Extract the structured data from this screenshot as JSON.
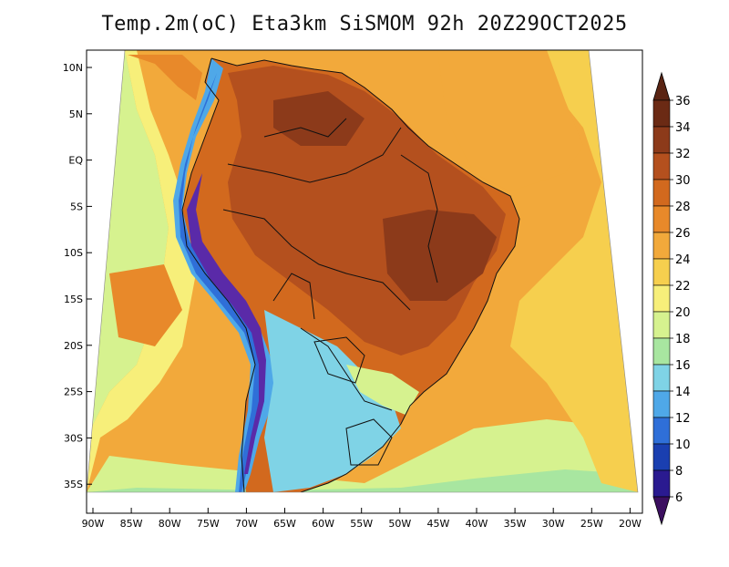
{
  "title": "Temp.2m(oC) Eta3km SiSMOM 92h 20Z29OCT2025",
  "lat_labels": [
    "10N",
    "5N",
    "EQ",
    "5S",
    "10S",
    "15S",
    "20S",
    "25S",
    "30S",
    "35S"
  ],
  "lon_labels": [
    "90W",
    "85W",
    "80W",
    "75W",
    "70W",
    "65W",
    "60W",
    "55W",
    "50W",
    "45W",
    "40W",
    "35W",
    "30W",
    "25W",
    "20W"
  ],
  "colorbar": {
    "labels": [
      "36",
      "34",
      "32",
      "30",
      "28",
      "26",
      "24",
      "22",
      "20",
      "18",
      "16",
      "14",
      "12",
      "10",
      "8",
      "6"
    ],
    "colors": [
      "#6b2a14",
      "#8c3a1a",
      "#b4501e",
      "#d2691e",
      "#e8892a",
      "#f2a93b",
      "#f6cf4e",
      "#f7ef7a",
      "#d6f28f",
      "#a8e6a0",
      "#7fd3e6",
      "#4fa8e8",
      "#2f6fd8",
      "#1a3fb0",
      "#2a1a90",
      "#5a2aa8",
      "#7a2aa0"
    ],
    "top_color": "#5a2413",
    "bottom_color": "#3c0f60"
  },
  "palette": {
    "ocean_warm": "#f2a93b",
    "ocean_mid": "#f6cf4e",
    "ocean_cool": "#f7ef7a",
    "ocean_cold": "#d6f28f",
    "ocean_coldest": "#a8e6a0",
    "land_hot": "#b4501e",
    "land_very_hot": "#8c3a1a",
    "land_warm": "#d2691e",
    "land_mild": "#e8892a",
    "andes_cold": "#4fa8e8",
    "andes_colder": "#2f6fd8",
    "andes_coldest": "#5a2aa8",
    "south_cool": "#7fd3e6",
    "border": "#111111"
  }
}
